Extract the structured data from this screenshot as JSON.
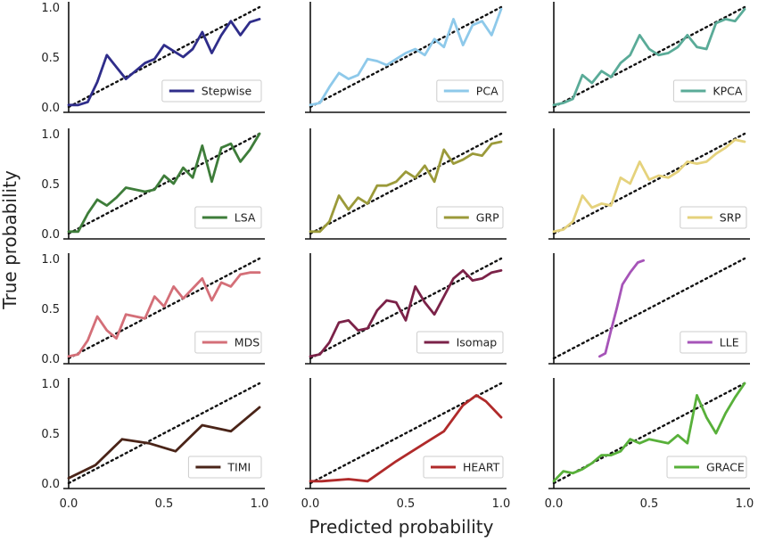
{
  "figure": {
    "xlabel": "Predicted probability",
    "ylabel": "True probability",
    "x_ticks": [
      "0.0",
      "0.5",
      "1.0"
    ],
    "y_ticks": [
      "0.0",
      "0.5",
      "1.0"
    ]
  },
  "chart_data": [
    {
      "type": "line",
      "legend": "top-down? no",
      "name": "Stepwise",
      "color": "#2f2d8a",
      "xlim": [
        0,
        1
      ],
      "ylim": [
        0,
        1
      ],
      "grid": false,
      "legend_position": "lower-right",
      "x": [
        0.0,
        0.05,
        0.1,
        0.15,
        0.2,
        0.25,
        0.3,
        0.35,
        0.4,
        0.45,
        0.5,
        0.55,
        0.6,
        0.65,
        0.7,
        0.75,
        0.8,
        0.85,
        0.9,
        0.95,
        1.0
      ],
      "y": [
        0.02,
        0.02,
        0.05,
        0.25,
        0.52,
        0.4,
        0.28,
        0.36,
        0.44,
        0.48,
        0.62,
        0.56,
        0.5,
        0.58,
        0.75,
        0.54,
        0.72,
        0.86,
        0.72,
        0.85,
        0.88
      ]
    },
    {
      "type": "line",
      "name": "PCA",
      "color": "#8ec9ea",
      "xlim": [
        0,
        1
      ],
      "ylim": [
        0,
        1
      ],
      "grid": false,
      "legend_position": "lower-right",
      "x": [
        0.0,
        0.05,
        0.1,
        0.15,
        0.2,
        0.25,
        0.3,
        0.35,
        0.4,
        0.45,
        0.5,
        0.55,
        0.6,
        0.65,
        0.7,
        0.75,
        0.8,
        0.85,
        0.9,
        0.95,
        1.0
      ],
      "y": [
        0.02,
        0.04,
        0.2,
        0.34,
        0.28,
        0.32,
        0.48,
        0.46,
        0.42,
        0.48,
        0.54,
        0.58,
        0.52,
        0.68,
        0.6,
        0.88,
        0.62,
        0.82,
        0.86,
        0.72,
        0.98
      ]
    },
    {
      "type": "line",
      "name": "KPCA",
      "color": "#5aab98",
      "xlim": [
        0,
        1
      ],
      "ylim": [
        0,
        1
      ],
      "grid": false,
      "legend_position": "lower-right",
      "x": [
        0.0,
        0.05,
        0.1,
        0.15,
        0.2,
        0.25,
        0.3,
        0.35,
        0.4,
        0.45,
        0.5,
        0.55,
        0.6,
        0.65,
        0.7,
        0.75,
        0.8,
        0.85,
        0.9,
        0.95,
        1.0
      ],
      "y": [
        0.02,
        0.04,
        0.08,
        0.32,
        0.24,
        0.36,
        0.3,
        0.44,
        0.52,
        0.72,
        0.58,
        0.52,
        0.54,
        0.6,
        0.72,
        0.6,
        0.58,
        0.84,
        0.88,
        0.86,
        0.98
      ]
    },
    {
      "type": "line",
      "name": "LSA",
      "color": "#3e7d3a",
      "xlim": [
        0,
        1
      ],
      "ylim": [
        0,
        1
      ],
      "grid": false,
      "legend_position": "lower-right",
      "x": [
        0.0,
        0.05,
        0.1,
        0.15,
        0.2,
        0.25,
        0.3,
        0.35,
        0.4,
        0.45,
        0.5,
        0.55,
        0.6,
        0.65,
        0.7,
        0.75,
        0.8,
        0.85,
        0.9,
        0.95,
        1.0
      ],
      "y": [
        0.02,
        0.02,
        0.2,
        0.34,
        0.28,
        0.36,
        0.46,
        0.44,
        0.42,
        0.44,
        0.58,
        0.5,
        0.66,
        0.56,
        0.88,
        0.52,
        0.86,
        0.9,
        0.72,
        0.84,
        1.0
      ]
    },
    {
      "type": "line",
      "name": "GRP",
      "color": "#9b9a3a",
      "xlim": [
        0,
        1
      ],
      "ylim": [
        0,
        1
      ],
      "grid": false,
      "legend_position": "lower-right",
      "x": [
        0.0,
        0.05,
        0.1,
        0.15,
        0.2,
        0.25,
        0.3,
        0.35,
        0.4,
        0.45,
        0.5,
        0.55,
        0.6,
        0.65,
        0.7,
        0.75,
        0.8,
        0.85,
        0.9,
        0.95,
        1.0
      ],
      "y": [
        0.02,
        0.02,
        0.12,
        0.38,
        0.24,
        0.36,
        0.3,
        0.48,
        0.48,
        0.52,
        0.62,
        0.56,
        0.68,
        0.52,
        0.84,
        0.7,
        0.74,
        0.8,
        0.78,
        0.9,
        0.92
      ]
    },
    {
      "type": "line",
      "name": "SRP",
      "color": "#e5d27c",
      "xlim": [
        0,
        1
      ],
      "ylim": [
        0,
        1
      ],
      "grid": false,
      "legend_position": "lower-right",
      "x": [
        0.0,
        0.05,
        0.1,
        0.15,
        0.2,
        0.25,
        0.3,
        0.35,
        0.4,
        0.45,
        0.5,
        0.55,
        0.6,
        0.65,
        0.7,
        0.75,
        0.8,
        0.85,
        0.9,
        0.95,
        1.0
      ],
      "y": [
        0.02,
        0.04,
        0.12,
        0.38,
        0.26,
        0.3,
        0.28,
        0.56,
        0.5,
        0.72,
        0.54,
        0.58,
        0.56,
        0.62,
        0.72,
        0.7,
        0.72,
        0.8,
        0.86,
        0.94,
        0.92
      ]
    },
    {
      "type": "line",
      "name": "MDS",
      "color": "#d46f78",
      "xlim": [
        0,
        1
      ],
      "ylim": [
        0,
        1
      ],
      "grid": false,
      "legend_position": "lower-right",
      "x": [
        0.0,
        0.05,
        0.1,
        0.15,
        0.2,
        0.25,
        0.3,
        0.35,
        0.4,
        0.45,
        0.5,
        0.55,
        0.6,
        0.65,
        0.7,
        0.75,
        0.8,
        0.85,
        0.9,
        0.95,
        1.0
      ],
      "y": [
        0.02,
        0.04,
        0.18,
        0.42,
        0.28,
        0.2,
        0.44,
        0.42,
        0.4,
        0.62,
        0.52,
        0.72,
        0.6,
        0.7,
        0.8,
        0.58,
        0.76,
        0.72,
        0.84,
        0.86,
        0.86
      ]
    },
    {
      "type": "line",
      "name": "Isomap",
      "color": "#7b2248",
      "xlim": [
        0,
        1
      ],
      "ylim": [
        0,
        1
      ],
      "grid": false,
      "legend_position": "lower-right",
      "x": [
        0.0,
        0.05,
        0.1,
        0.15,
        0.2,
        0.25,
        0.3,
        0.35,
        0.4,
        0.45,
        0.5,
        0.55,
        0.6,
        0.65,
        0.7,
        0.75,
        0.8,
        0.85,
        0.9,
        0.95,
        1.0
      ],
      "y": [
        0.02,
        0.04,
        0.16,
        0.36,
        0.38,
        0.28,
        0.3,
        0.48,
        0.58,
        0.56,
        0.38,
        0.72,
        0.56,
        0.44,
        0.62,
        0.8,
        0.88,
        0.78,
        0.8,
        0.86,
        0.88
      ]
    },
    {
      "type": "line",
      "name": "LLE",
      "color": "#a654b8",
      "xlim": [
        0,
        1
      ],
      "ylim": [
        0,
        1
      ],
      "grid": false,
      "legend_position": "lower-right",
      "x": [
        0.24,
        0.27,
        0.3,
        0.33,
        0.36,
        0.4,
        0.44,
        0.47
      ],
      "y": [
        0.02,
        0.05,
        0.28,
        0.5,
        0.74,
        0.86,
        0.96,
        0.98
      ]
    },
    {
      "type": "line",
      "name": "TIMI",
      "color": "#4a2418",
      "xlim": [
        0,
        1
      ],
      "ylim": [
        0,
        1
      ],
      "grid": false,
      "legend_position": "lower-right",
      "x": [
        0.0,
        0.14,
        0.28,
        0.42,
        0.56,
        0.7,
        0.85,
        1.0
      ],
      "y": [
        0.05,
        0.18,
        0.44,
        0.4,
        0.32,
        0.58,
        0.52,
        0.76
      ]
    },
    {
      "type": "line",
      "name": "HEART",
      "color": "#b02a2a",
      "xlim": [
        0,
        1
      ],
      "ylim": [
        0,
        1
      ],
      "grid": false,
      "legend_position": "lower-right",
      "x": [
        0.0,
        0.06,
        0.2,
        0.3,
        0.45,
        0.6,
        0.7,
        0.8,
        0.87,
        0.92,
        1.0
      ],
      "y": [
        0.02,
        0.02,
        0.04,
        0.02,
        0.22,
        0.4,
        0.52,
        0.78,
        0.88,
        0.82,
        0.66
      ]
    },
    {
      "type": "line",
      "name": "GRACE",
      "color": "#58b03a",
      "xlim": [
        0,
        1
      ],
      "ylim": [
        0,
        1
      ],
      "grid": false,
      "legend_position": "lower-right",
      "x": [
        0.0,
        0.05,
        0.1,
        0.15,
        0.2,
        0.25,
        0.3,
        0.35,
        0.4,
        0.45,
        0.5,
        0.55,
        0.6,
        0.65,
        0.7,
        0.75,
        0.8,
        0.85,
        0.9,
        0.95,
        1.0
      ],
      "y": [
        0.02,
        0.12,
        0.1,
        0.14,
        0.2,
        0.28,
        0.28,
        0.32,
        0.44,
        0.4,
        0.44,
        0.42,
        0.4,
        0.48,
        0.4,
        0.88,
        0.66,
        0.5,
        0.7,
        0.86,
        1.0
      ]
    }
  ]
}
